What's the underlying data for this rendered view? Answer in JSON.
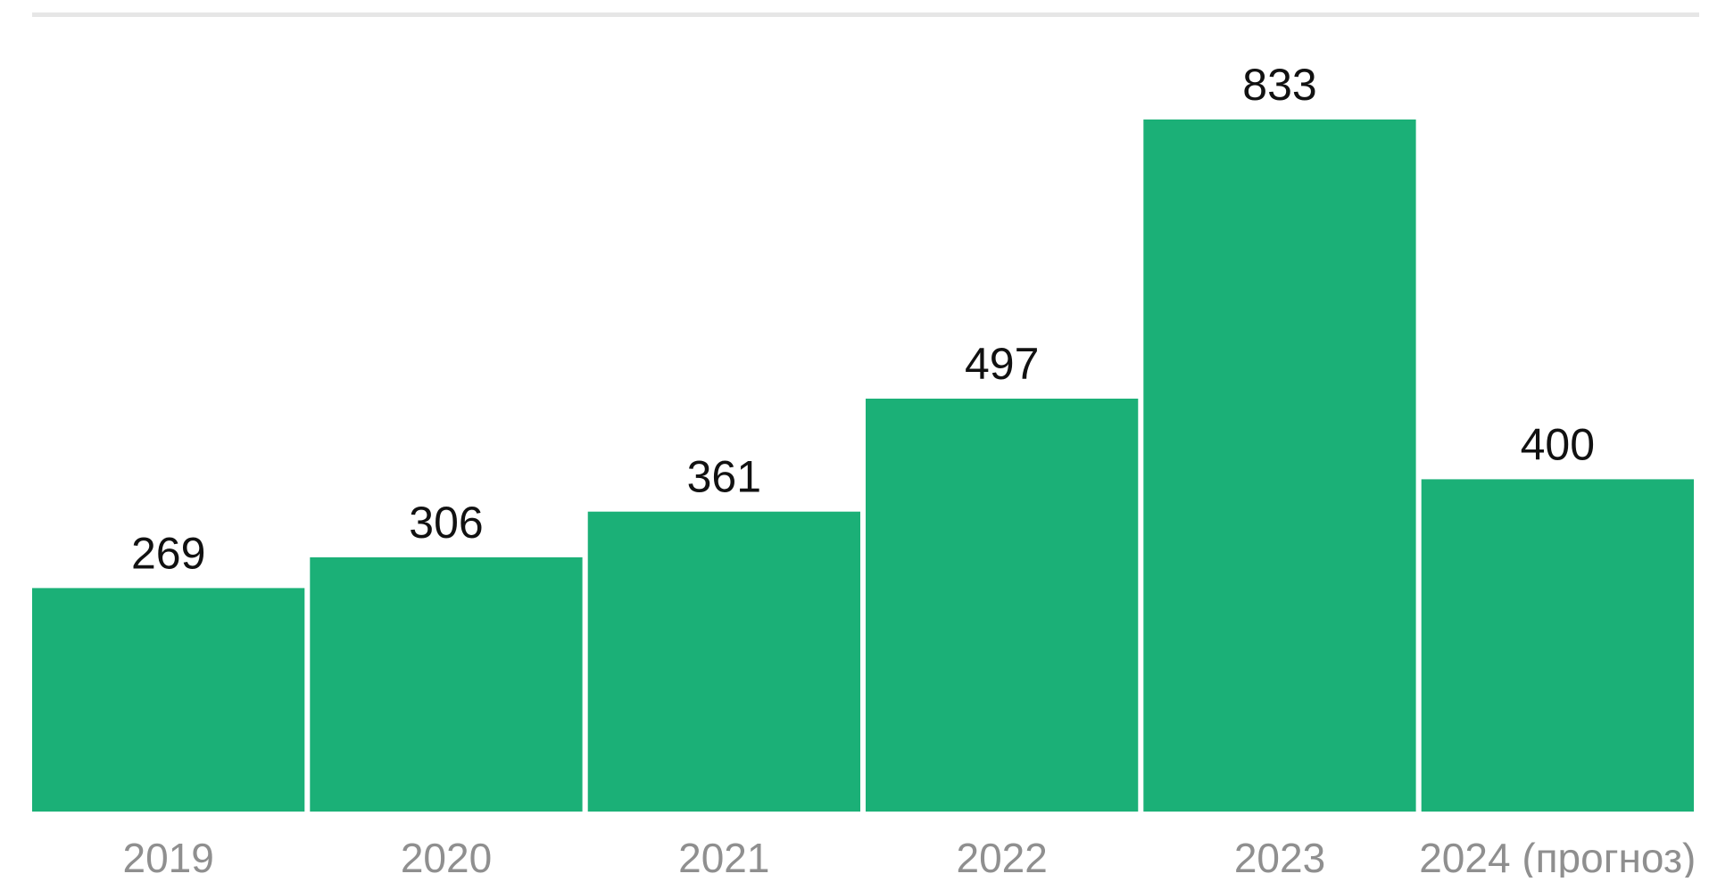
{
  "chart_data": {
    "type": "bar",
    "categories": [
      "2019",
      "2020",
      "2021",
      "2022",
      "2023",
      "2024 (прогноз)"
    ],
    "values": [
      269,
      306,
      361,
      497,
      833,
      400
    ],
    "data_labels": [
      "269",
      "306",
      "361",
      "497",
      "833",
      "400"
    ],
    "title": "",
    "xlabel": "",
    "ylabel": "",
    "ylim": [
      0,
      833
    ],
    "grid": false,
    "legend": "none",
    "colors": {
      "bar": "#1bb077",
      "top_rule": "#e6e6e6",
      "tick_text": "#8f8f8f",
      "value_text": "#111111"
    }
  }
}
